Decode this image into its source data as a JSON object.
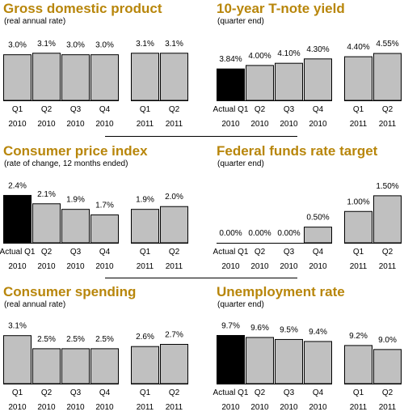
{
  "colors": {
    "title": "#b8860b",
    "bar": "#c0c0c0",
    "bar_actual": "#000000",
    "bar_stroke": "#000000"
  },
  "chart_data": [
    {
      "type": "bar",
      "title": "Gross domestic product",
      "subtitle": "(real annual rate)",
      "categories": [
        [
          "Q1",
          "2010"
        ],
        [
          "Q2",
          "2010"
        ],
        [
          "Q3",
          "2010"
        ],
        [
          "Q4",
          "2010"
        ],
        [
          "Q1",
          "2011"
        ],
        [
          "Q2",
          "2011"
        ]
      ],
      "values": [
        3.0,
        3.1,
        3.0,
        3.0,
        3.1,
        3.1
      ],
      "labels": [
        "3.0%",
        "3.1%",
        "3.0%",
        "3.0%",
        "3.1%",
        "3.1%"
      ],
      "actual_index": null,
      "ylim": [
        0,
        3.3
      ]
    },
    {
      "type": "bar",
      "title": "10-year T-note yield",
      "subtitle": "(quarter end)",
      "categories": [
        [
          "Actual Q1",
          "2010"
        ],
        [
          "Q2",
          "2010"
        ],
        [
          "Q3",
          "2010"
        ],
        [
          "Q4",
          "2010"
        ],
        [
          "Q1",
          "2011"
        ],
        [
          "Q2",
          "2011"
        ]
      ],
      "values": [
        3.84,
        4.0,
        4.1,
        4.3,
        4.4,
        4.55
      ],
      "labels": [
        "3.84%",
        "4.00%",
        "4.10%",
        "4.30%",
        "4.40%",
        "4.55%"
      ],
      "actual_index": 0,
      "ylim": [
        2.4,
        4.7
      ]
    },
    {
      "type": "bar",
      "title": "Consumer price index",
      "subtitle": "(rate of change, 12 months ended)",
      "categories": [
        [
          "Actual Q1",
          "2010"
        ],
        [
          "Q2",
          "2010"
        ],
        [
          "Q3",
          "2010"
        ],
        [
          "Q4",
          "2010"
        ],
        [
          "Q1",
          "2011"
        ],
        [
          "Q2",
          "2011"
        ]
      ],
      "values": [
        2.4,
        2.1,
        1.9,
        1.7,
        1.9,
        2.0
      ],
      "labels": [
        "2.4%",
        "2.1%",
        "1.9%",
        "1.7%",
        "1.9%",
        "2.0%"
      ],
      "actual_index": 0,
      "ylim": [
        0.7,
        2.5
      ]
    },
    {
      "type": "bar",
      "title": "Federal funds rate target",
      "subtitle": "(quarter end)",
      "categories": [
        [
          "Actual Q1",
          "2010"
        ],
        [
          "Q2",
          "2010"
        ],
        [
          "Q3",
          "2010"
        ],
        [
          "Q4",
          "2010"
        ],
        [
          "Q1",
          "2011"
        ],
        [
          "Q2",
          "2011"
        ]
      ],
      "values": [
        0.0,
        0.0,
        0.0,
        0.5,
        1.0,
        1.5
      ],
      "labels": [
        "0.00%",
        "0.00%",
        "0.00%",
        "0.50%",
        "1.00%",
        "1.50%"
      ],
      "actual_index": 0,
      "ylim": [
        0,
        1.6
      ]
    },
    {
      "type": "bar",
      "title": "Consumer spending",
      "subtitle": "(real annual rate)",
      "categories": [
        [
          "Q1",
          "2010"
        ],
        [
          "Q2",
          "2010"
        ],
        [
          "Q3",
          "2010"
        ],
        [
          "Q4",
          "2010"
        ],
        [
          "Q1",
          "2011"
        ],
        [
          "Q2",
          "2011"
        ]
      ],
      "values": [
        3.1,
        2.5,
        2.5,
        2.5,
        2.6,
        2.7
      ],
      "labels": [
        "3.1%",
        "2.5%",
        "2.5%",
        "2.5%",
        "2.6%",
        "2.7%"
      ],
      "actual_index": null,
      "ylim": [
        0.9,
        3.2
      ]
    },
    {
      "type": "bar",
      "title": "Unemployment rate",
      "subtitle": "(quarter end)",
      "categories": [
        [
          "Actual Q1",
          "2010"
        ],
        [
          "Q2",
          "2010"
        ],
        [
          "Q3",
          "2010"
        ],
        [
          "Q4",
          "2010"
        ],
        [
          "Q1",
          "2011"
        ],
        [
          "Q2",
          "2011"
        ]
      ],
      "values": [
        9.7,
        9.6,
        9.5,
        9.4,
        9.2,
        9.0
      ],
      "labels": [
        "9.7%",
        "9.6%",
        "9.5%",
        "9.4%",
        "9.2%",
        "9.0%"
      ],
      "actual_index": 0,
      "ylim": [
        7.3,
        9.8
      ]
    }
  ]
}
